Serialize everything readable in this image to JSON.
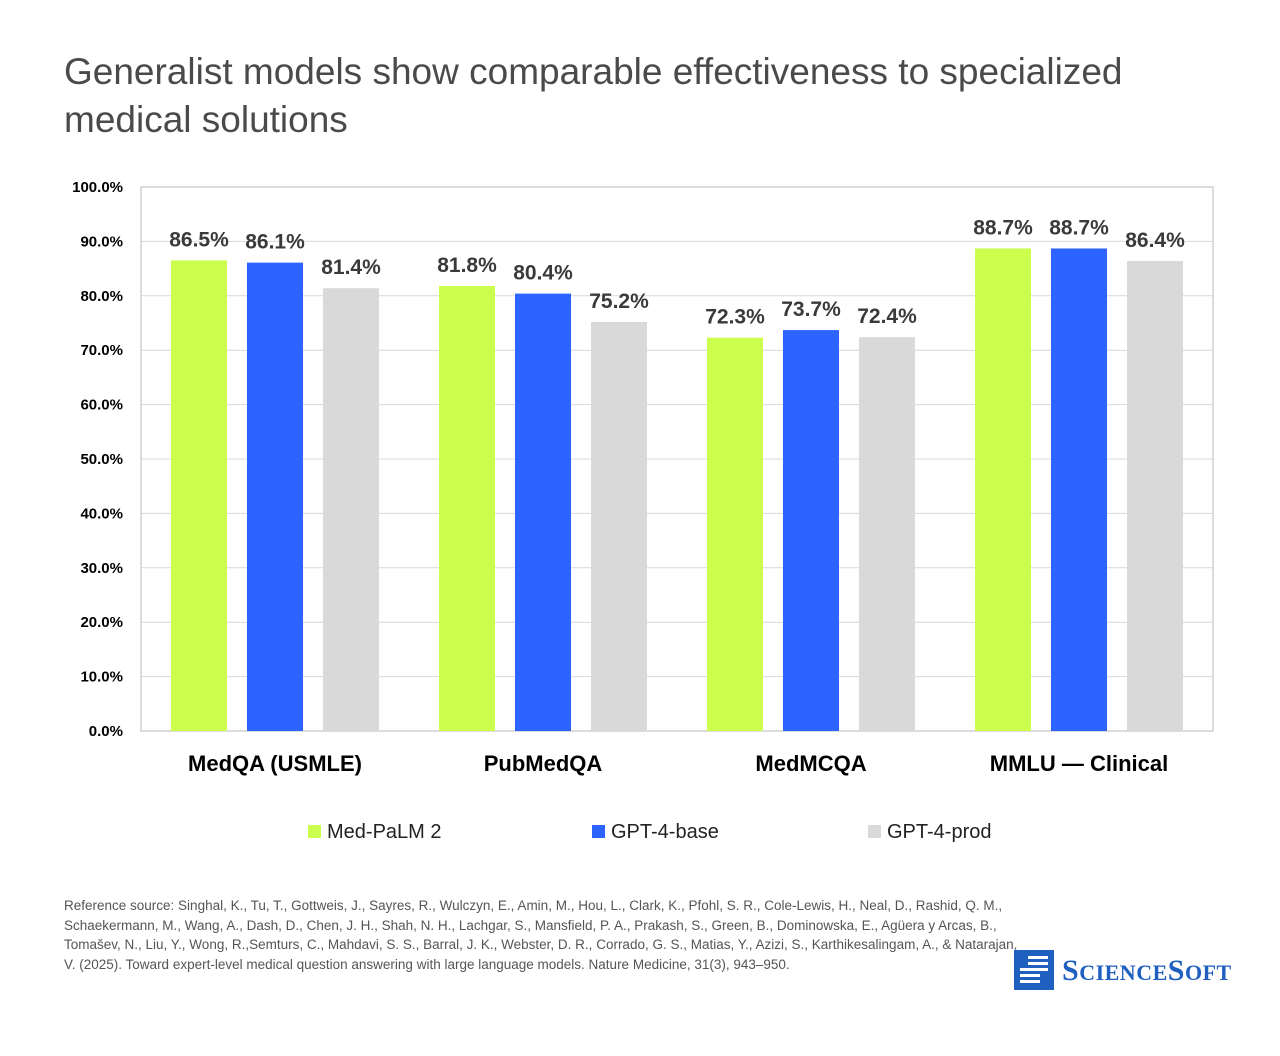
{
  "chart_data": {
    "type": "bar",
    "title": "Generalist models show comparable effectiveness to specialized medical solutions",
    "categories": [
      "MedQA (USMLE)",
      "PubMedQA",
      "MedMCQA",
      "MMLU — Clinical"
    ],
    "series": [
      {
        "name": "Med-PaLM 2",
        "color": "#ccff4d",
        "values": [
          86.5,
          81.8,
          72.3,
          88.7
        ],
        "labels": [
          "86.5%",
          "81.8%",
          "72.3%",
          "88.7%"
        ]
      },
      {
        "name": "GPT-4-base",
        "color": "#2d63ff",
        "values": [
          86.1,
          80.4,
          73.7,
          88.7
        ],
        "labels": [
          "86.1%",
          "80.4%",
          "73.7%",
          "88.7%"
        ]
      },
      {
        "name": "GPT-4-prod",
        "color": "#d9d9d9",
        "values": [
          81.4,
          75.2,
          72.4,
          86.4
        ],
        "labels": [
          "81.4%",
          "75.2%",
          "72.4%",
          "86.4%"
        ]
      }
    ],
    "ylim": [
      0,
      100
    ],
    "yticks": [
      0,
      10,
      20,
      30,
      40,
      50,
      60,
      70,
      80,
      90,
      100
    ],
    "ytick_labels": [
      "0.0%",
      "10.0%",
      "20.0%",
      "30.0%",
      "40.0%",
      "50.0%",
      "60.0%",
      "70.0%",
      "80.0%",
      "90.0%",
      "100.0%"
    ],
    "xlabel": "",
    "ylabel": "",
    "grid": true,
    "legend_position": "bottom"
  },
  "reference": "Reference source: Singhal, K., Tu, T., Gottweis, J., Sayres, R., Wulczyn, E., Amin, M., Hou, L., Clark, K., Pfohl, S. R., Cole-Lewis, H., Neal, D., Rashid, Q. M., Schaekermann, M., Wang, A., Dash, D., Chen, J. H., Shah, N. H., Lachgar, S., Mansfield, P. A., Prakash, S., Green, B., Dominowska, E., Agüera y Arcas, B., Tomašev, N., Liu, Y., Wong, R.,Semturs, C., Mahdavi, S. S., Barral, J. K., Webster, D. R., Corrado, G. S., Matias, Y., Azizi, S., Karthikesalingam, A., & Natarajan, V. (2025). Toward expert-level medical question answering with large language models. Nature Medicine, 31(3), 943–950.",
  "logo": {
    "first_big": "S",
    "first_small": "CIENCE",
    "second_big": "S",
    "second_small": "OFT"
  }
}
